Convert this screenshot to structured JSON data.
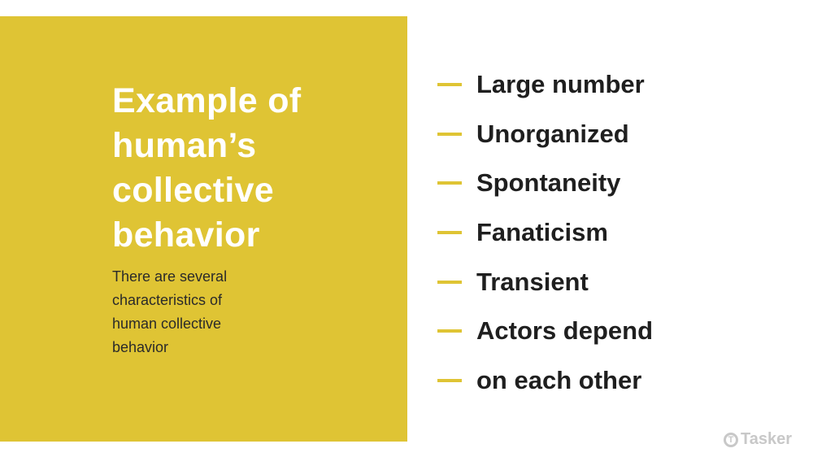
{
  "slide": {
    "title_lines": [
      "Example of",
      "human’s",
      "collective",
      "behavior"
    ],
    "subtitle_lines": [
      "There are several",
      "characteristics of",
      "human collective",
      "behavior"
    ],
    "items": [
      {
        "label": "Large number"
      },
      {
        "label": "Unorganized"
      },
      {
        "label": "Spontaneity"
      },
      {
        "label": "Fanaticism"
      },
      {
        "label": "Transient"
      },
      {
        "label": "Actors depend"
      },
      {
        "label": "on each other"
      }
    ],
    "accent_color": "#dfc434"
  },
  "watermark": {
    "brand": "Tasker",
    "icon": "tasker-logo-icon"
  }
}
